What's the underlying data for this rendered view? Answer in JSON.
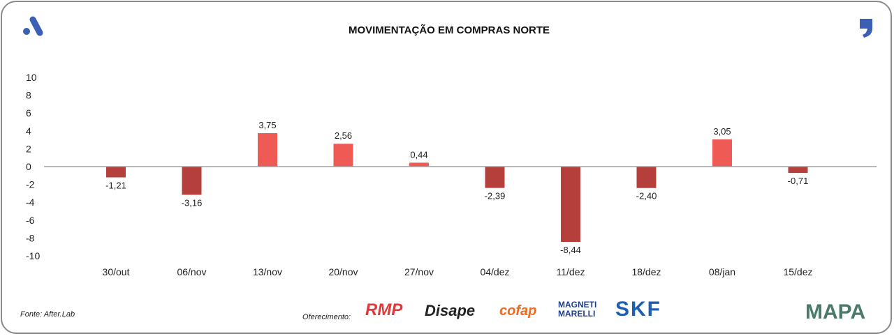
{
  "chart_data": {
    "type": "bar",
    "title": "MOVIMENTAÇÃO EM COMPRAS NORTE",
    "categories": [
      "30/out",
      "06/nov",
      "13/nov",
      "20/nov",
      "27/nov",
      "04/dez",
      "11/dez",
      "18/dez",
      "08/jan",
      "15/dez"
    ],
    "values": [
      -1.21,
      -3.16,
      3.75,
      2.56,
      0.44,
      -2.39,
      -8.44,
      -2.4,
      3.05,
      -0.71
    ],
    "value_labels": [
      "-1,21",
      "-3,16",
      "3,75",
      "2,56",
      "0,44",
      "-2,39",
      "-8,44",
      "-2,40",
      "3,05",
      "-0,71"
    ],
    "ylim": [
      -10,
      10
    ],
    "yticks": [
      "10",
      "8",
      "6",
      "4",
      "2",
      "0",
      "-2",
      "-4",
      "-6",
      "-8",
      "-10"
    ],
    "grid": false,
    "colors": {
      "positive": "#f05a55",
      "negative": "#b5403b",
      "axis": "#a0a0a0"
    }
  },
  "footer": {
    "source": "Fonte: After.Lab",
    "sponsor_label": "Oferecimento:",
    "sponsors": [
      "RMP",
      "Disape",
      "cofap",
      "MAGNETI MARELLI",
      "SKF"
    ],
    "brand": "MAPA"
  }
}
